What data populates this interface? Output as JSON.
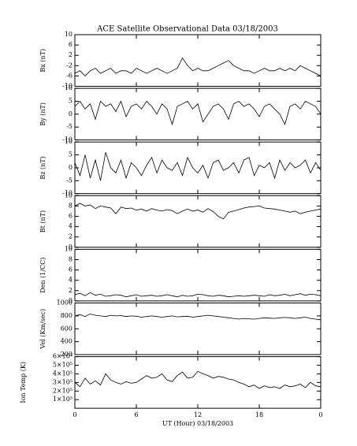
{
  "chart_data": [
    {
      "type": "line",
      "title": "ACE Satellite Observational Data   03/18/2003",
      "ylabel": "Bx (nT)",
      "xlim": [
        0,
        24
      ],
      "ylim": [
        -10,
        10
      ],
      "yticks": [
        -10,
        -6,
        -2,
        2,
        6,
        10
      ],
      "x": [
        0,
        0.5,
        1,
        1.5,
        2,
        2.5,
        3,
        3.5,
        4,
        4.5,
        5,
        5.5,
        6,
        6.5,
        7,
        7.5,
        8,
        8.5,
        9,
        9.5,
        10,
        10.5,
        11,
        11.5,
        12,
        12.5,
        13,
        13.5,
        14,
        14.5,
        15,
        15.5,
        16,
        16.5,
        17,
        17.5,
        18,
        18.5,
        19,
        19.5,
        20,
        20.5,
        21,
        21.5,
        22,
        22.5,
        23,
        23.5,
        24
      ],
      "values": [
        -5,
        -4,
        -6,
        -4,
        -3,
        -5,
        -4,
        -3,
        -5,
        -4,
        -4,
        -5,
        -3,
        -4,
        -5,
        -4,
        -3,
        -4,
        -5,
        -4,
        -3,
        1,
        -2,
        -4,
        -3,
        -4,
        -4,
        -3,
        -2,
        -1,
        0,
        -2,
        -3,
        -4,
        -4,
        -5,
        -4,
        -3,
        -4,
        -4,
        -3,
        -4,
        -3,
        -4,
        -2,
        -3,
        -4,
        -5,
        -6
      ]
    },
    {
      "type": "line",
      "ylabel": "By (nT)",
      "xlim": [
        0,
        24
      ],
      "ylim": [
        -10,
        10
      ],
      "yticks": [
        -10,
        -5,
        0,
        5,
        10
      ],
      "x": [
        0,
        0.5,
        1,
        1.5,
        2,
        2.5,
        3,
        3.5,
        4,
        4.5,
        5,
        5.5,
        6,
        6.5,
        7,
        7.5,
        8,
        8.5,
        9,
        9.5,
        10,
        10.5,
        11,
        11.5,
        12,
        12.5,
        13,
        13.5,
        14,
        14.5,
        15,
        15.5,
        16,
        16.5,
        17,
        17.5,
        18,
        18.5,
        19,
        19.5,
        20,
        20.5,
        21,
        21.5,
        22,
        22.5,
        23,
        23.5,
        24
      ],
      "values": [
        3,
        5,
        2,
        4,
        -2,
        5,
        3,
        4,
        1,
        5,
        -1,
        3,
        4,
        2,
        5,
        3,
        0,
        4,
        2,
        -4,
        3,
        4,
        5,
        2,
        4,
        -3,
        0,
        3,
        4,
        2,
        -2,
        4,
        5,
        3,
        4,
        2,
        -1,
        3,
        4,
        2,
        0,
        -4,
        3,
        4,
        2,
        5,
        4,
        3,
        0
      ]
    },
    {
      "type": "line",
      "ylabel": "Bz (nT)",
      "xlim": [
        0,
        24
      ],
      "ylim": [
        -10,
        10
      ],
      "yticks": [
        -10,
        -5,
        0,
        5,
        10
      ],
      "x": [
        0,
        0.5,
        1,
        1.5,
        2,
        2.5,
        3,
        3.5,
        4,
        4.5,
        5,
        5.5,
        6,
        6.5,
        7,
        7.5,
        8,
        8.5,
        9,
        9.5,
        10,
        10.5,
        11,
        11.5,
        12,
        12.5,
        13,
        13.5,
        14,
        14.5,
        15,
        15.5,
        16,
        16.5,
        17,
        17.5,
        18,
        18.5,
        19,
        19.5,
        20,
        20.5,
        21,
        21.5,
        22,
        22.5,
        23,
        23.5,
        24
      ],
      "values": [
        2,
        -3,
        5,
        -4,
        3,
        -5,
        6,
        0,
        -2,
        3,
        -4,
        2,
        0,
        -3,
        1,
        4,
        -2,
        3,
        0,
        -1,
        2,
        -3,
        4,
        0,
        -2,
        1,
        -4,
        2,
        3,
        -1,
        0,
        2,
        -2,
        3,
        4,
        -3,
        1,
        0,
        2,
        -4,
        3,
        -1,
        2,
        0,
        1,
        3,
        -2,
        2,
        -1
      ]
    },
    {
      "type": "line",
      "ylabel": "Bt (nT)",
      "xlim": [
        0,
        24
      ],
      "ylim": [
        0,
        10
      ],
      "yticks": [
        0,
        2,
        4,
        6,
        8,
        10
      ],
      "x": [
        0,
        0.5,
        1,
        1.5,
        2,
        2.5,
        3,
        3.5,
        4,
        4.5,
        5,
        5.5,
        6,
        6.5,
        7,
        7.5,
        8,
        8.5,
        9,
        9.5,
        10,
        10.5,
        11,
        11.5,
        12,
        12.5,
        13,
        13.5,
        14,
        14.5,
        15,
        15.5,
        16,
        16.5,
        17,
        17.5,
        18,
        18.5,
        19,
        19.5,
        20,
        20.5,
        21,
        21.5,
        22,
        22.5,
        23,
        23.5,
        24
      ],
      "values": [
        8,
        8.5,
        8,
        8.2,
        7.5,
        8,
        7.8,
        7.6,
        6.5,
        7.8,
        7.5,
        7.6,
        7.2,
        7.4,
        7,
        7.5,
        7.2,
        7,
        7.3,
        7.1,
        6.5,
        7,
        7.4,
        7,
        7.2,
        6.8,
        7.5,
        6.9,
        6,
        5.5,
        6.8,
        7,
        7.3,
        7.6,
        7.8,
        7.9,
        8,
        7.6,
        7.5,
        7.4,
        7.2,
        7,
        6.8,
        7,
        6.5,
        6.8,
        7,
        7.2,
        7.4
      ]
    },
    {
      "type": "line",
      "ylabel": "Den (1/CC)",
      "xlim": [
        0,
        24
      ],
      "ylim": [
        0,
        10
      ],
      "yticks": [
        0,
        2,
        4,
        6,
        8,
        10
      ],
      "x": [
        0,
        0.5,
        1,
        1.5,
        2,
        2.5,
        3,
        3.5,
        4,
        4.5,
        5,
        5.5,
        6,
        6.5,
        7,
        7.5,
        8,
        8.5,
        9,
        9.5,
        10,
        10.5,
        11,
        11.5,
        12,
        12.5,
        13,
        13.5,
        14,
        14.5,
        15,
        15.5,
        16,
        16.5,
        17,
        17.5,
        18,
        18.5,
        19,
        19.5,
        20,
        20.5,
        21,
        21.5,
        22,
        22.5,
        23,
        23.5,
        24
      ],
      "values": [
        1.2,
        1.5,
        1,
        1.6,
        1.1,
        1.3,
        0.9,
        1,
        1.2,
        1.1,
        0.8,
        1,
        1.2,
        0.9,
        1,
        1.1,
        0.9,
        1,
        1.2,
        1,
        0.8,
        1.1,
        0.9,
        1,
        1.3,
        1.2,
        1,
        0.9,
        1.1,
        1,
        0.8,
        0.9,
        1,
        0.9,
        1,
        1.1,
        1,
        0.9,
        1.2,
        1,
        1.1,
        1.3,
        1,
        1.2,
        1.4,
        1.1,
        1.3,
        1.2,
        1
      ]
    },
    {
      "type": "line",
      "ylabel": "Vel (Km/sec)",
      "xlim": [
        0,
        24
      ],
      "ylim": [
        200,
        1000
      ],
      "yticks": [
        200,
        400,
        600,
        800,
        1000
      ],
      "x": [
        0,
        0.5,
        1,
        1.5,
        2,
        2.5,
        3,
        3.5,
        4,
        4.5,
        5,
        5.5,
        6,
        6.5,
        7,
        7.5,
        8,
        8.5,
        9,
        9.5,
        10,
        10.5,
        11,
        11.5,
        12,
        12.5,
        13,
        13.5,
        14,
        14.5,
        15,
        15.5,
        16,
        16.5,
        17,
        17.5,
        18,
        18.5,
        19,
        19.5,
        20,
        20.5,
        21,
        21.5,
        22,
        22.5,
        23,
        23.5,
        24
      ],
      "values": [
        800,
        820,
        790,
        830,
        810,
        800,
        790,
        810,
        800,
        805,
        790,
        800,
        795,
        780,
        790,
        800,
        790,
        780,
        790,
        800,
        785,
        790,
        795,
        780,
        790,
        800,
        810,
        800,
        790,
        780,
        770,
        760,
        750,
        760,
        755,
        750,
        760,
        770,
        765,
        760,
        770,
        775,
        770,
        760,
        770,
        780,
        760,
        750,
        740
      ]
    },
    {
      "type": "line",
      "ylabel": "Ion Temp (K)",
      "xlabel": "UT (Hour)  03/18/2003",
      "xlim": [
        0,
        24
      ],
      "xticks": [
        0,
        6,
        12,
        18,
        {
          "value": 24,
          "label": "0"
        }
      ],
      "ylim": [
        0,
        600000
      ],
      "yticks": [
        {
          "value": 100000,
          "label": "1×10⁵"
        },
        {
          "value": 200000,
          "label": "2×10⁵"
        },
        {
          "value": 300000,
          "label": "3×10⁵"
        },
        {
          "value": 400000,
          "label": "4×10⁵"
        },
        {
          "value": 500000,
          "label": "5×10⁵"
        },
        {
          "value": 600000,
          "label": "6×10⁵"
        }
      ],
      "x": [
        0,
        0.5,
        1,
        1.5,
        2,
        2.5,
        3,
        3.5,
        4,
        4.5,
        5,
        5.5,
        6,
        6.5,
        7,
        7.5,
        8,
        8.5,
        9,
        9.5,
        10,
        10.5,
        11,
        11.5,
        12,
        12.5,
        13,
        13.5,
        14,
        14.5,
        15,
        15.5,
        16,
        16.5,
        17,
        17.5,
        18,
        18.5,
        19,
        19.5,
        20,
        20.5,
        21,
        21.5,
        22,
        22.5,
        23,
        23.5,
        24
      ],
      "values": [
        300000,
        250000,
        350000,
        280000,
        320000,
        270000,
        400000,
        330000,
        300000,
        280000,
        310000,
        290000,
        300000,
        340000,
        380000,
        350000,
        360000,
        400000,
        330000,
        310000,
        380000,
        420000,
        350000,
        360000,
        430000,
        400000,
        380000,
        350000,
        370000,
        360000,
        340000,
        330000,
        300000,
        280000,
        250000,
        270000,
        230000,
        260000,
        240000,
        250000,
        230000,
        270000,
        250000,
        260000,
        280000,
        240000,
        300000,
        260000,
        250000
      ]
    }
  ]
}
